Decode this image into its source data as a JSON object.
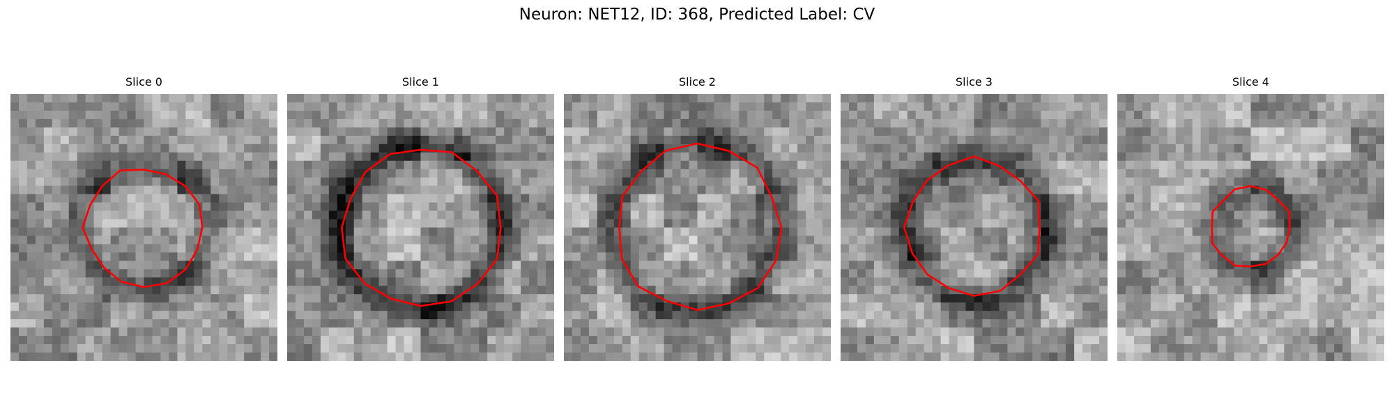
{
  "figure": {
    "title": "Neuron: NET12, ID: 368, Predicted Label: CV"
  },
  "contour_color": "#ff0000",
  "panels": [
    {
      "title": "Slice 0",
      "seed": 11,
      "dark_ring": 0.55,
      "contour_radius": 0.45
    },
    {
      "title": "Slice 1",
      "seed": 23,
      "dark_ring": 0.75,
      "contour_radius": 0.6
    },
    {
      "title": "Slice 2",
      "seed": 37,
      "dark_ring": 0.6,
      "contour_radius": 0.62
    },
    {
      "title": "Slice 3",
      "seed": 49,
      "dark_ring": 0.65,
      "contour_radius": 0.52
    },
    {
      "title": "Slice 4",
      "seed": 61,
      "dark_ring": 0.5,
      "contour_radius": 0.3
    }
  ]
}
